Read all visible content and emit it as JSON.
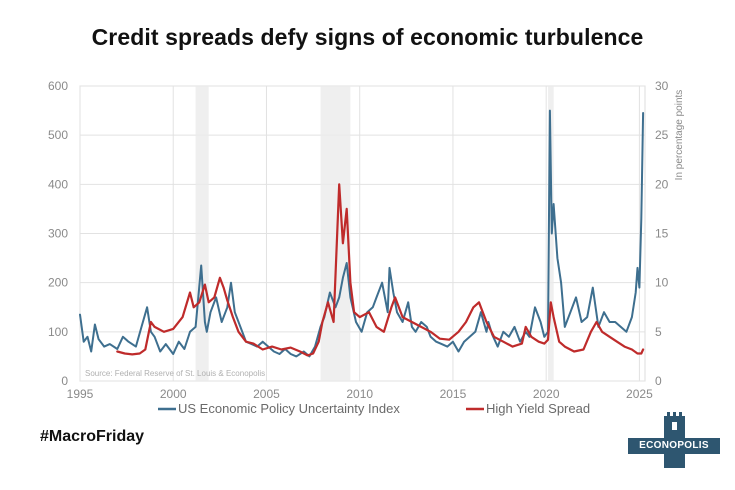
{
  "chart_data": {
    "type": "line",
    "title": "Credit spreads defy signs of economic turbulence",
    "y_right_label": "In percentage points",
    "source_note": "Source: Federal Reserve of St. Louis & Econopolis",
    "x_ticks": [
      "1995",
      "2000",
      "2005",
      "2010",
      "2015",
      "2020",
      "2025"
    ],
    "xlim": [
      1995,
      2025.3
    ],
    "y_left_ticks": [
      "0",
      "100",
      "200",
      "300",
      "400",
      "500",
      "600"
    ],
    "ylim_left": [
      0,
      600
    ],
    "y_right_ticks": [
      "0",
      "5",
      "10",
      "15",
      "20",
      "25",
      "30"
    ],
    "ylim_right": [
      0,
      30
    ],
    "grid": true,
    "legend_position": "bottom",
    "recessions": [
      [
        2001.2,
        2001.9
      ],
      [
        2007.9,
        2009.5
      ],
      [
        2020.1,
        2020.4
      ]
    ],
    "series": [
      {
        "name": "US Economic Policy Uncertainty Index",
        "axis": "left",
        "color": "#3e6f8f",
        "x": [
          1995.0,
          1995.2,
          1995.4,
          1995.6,
          1995.8,
          1996.0,
          1996.3,
          1996.6,
          1997.0,
          1997.3,
          1997.6,
          1998.0,
          1998.3,
          1998.6,
          1998.8,
          1999.0,
          1999.3,
          1999.6,
          2000.0,
          2000.3,
          2000.6,
          2000.9,
          2001.2,
          2001.5,
          2001.7,
          2001.8,
          2002.0,
          2002.3,
          2002.6,
          2002.9,
          2003.1,
          2003.3,
          2003.6,
          2003.9,
          2004.2,
          2004.5,
          2004.8,
          2005.1,
          2005.4,
          2005.7,
          2006.0,
          2006.3,
          2006.6,
          2007.0,
          2007.3,
          2007.6,
          2007.9,
          2008.1,
          2008.4,
          2008.7,
          2008.9,
          2009.1,
          2009.3,
          2009.5,
          2009.8,
          2010.1,
          2010.4,
          2010.7,
          2010.9,
          2011.2,
          2011.5,
          2011.6,
          2011.8,
          2012.0,
          2012.3,
          2012.6,
          2012.8,
          2013.0,
          2013.3,
          2013.6,
          2013.8,
          2014.1,
          2014.4,
          2014.7,
          2015.0,
          2015.3,
          2015.6,
          2015.9,
          2016.2,
          2016.5,
          2016.8,
          2016.9,
          2017.1,
          2017.4,
          2017.7,
          2018.0,
          2018.3,
          2018.6,
          2018.9,
          2019.1,
          2019.4,
          2019.7,
          2019.9,
          2020.1,
          2020.2,
          2020.3,
          2020.4,
          2020.6,
          2020.8,
          2021.0,
          2021.3,
          2021.6,
          2021.9,
          2022.2,
          2022.5,
          2022.8,
          2023.1,
          2023.4,
          2023.7,
          2024.0,
          2024.3,
          2024.6,
          2024.8,
          2024.9,
          2025.0,
          2025.1,
          2025.2
        ],
        "values": [
          135,
          80,
          90,
          60,
          115,
          85,
          70,
          75,
          65,
          90,
          80,
          70,
          110,
          150,
          100,
          90,
          60,
          75,
          55,
          80,
          65,
          100,
          110,
          235,
          120,
          100,
          140,
          170,
          120,
          150,
          200,
          140,
          110,
          80,
          75,
          70,
          80,
          70,
          60,
          55,
          65,
          55,
          50,
          60,
          50,
          70,
          110,
          130,
          180,
          150,
          170,
          210,
          240,
          170,
          120,
          100,
          140,
          150,
          170,
          200,
          140,
          230,
          180,
          140,
          120,
          160,
          110,
          100,
          120,
          110,
          90,
          80,
          75,
          70,
          80,
          60,
          80,
          90,
          100,
          140,
          100,
          120,
          95,
          70,
          100,
          90,
          110,
          80,
          100,
          90,
          150,
          120,
          90,
          100,
          550,
          300,
          360,
          250,
          200,
          110,
          140,
          170,
          120,
          130,
          190,
          110,
          140,
          120,
          120,
          110,
          100,
          130,
          180,
          230,
          190,
          330,
          545
        ]
      },
      {
        "name": "High Yield Spread",
        "axis": "right",
        "color": "#bf2b2b",
        "x": [
          1997.0,
          1997.4,
          1997.8,
          1998.2,
          1998.5,
          1998.8,
          1999.0,
          1999.5,
          2000.0,
          2000.5,
          2000.9,
          2001.1,
          2001.4,
          2001.7,
          2001.9,
          2002.2,
          2002.5,
          2002.7,
          2002.9,
          2003.2,
          2003.5,
          2003.9,
          2004.3,
          2004.8,
          2005.3,
          2005.8,
          2006.3,
          2006.8,
          2007.2,
          2007.5,
          2007.8,
          2008.0,
          2008.3,
          2008.6,
          2008.9,
          2009.1,
          2009.3,
          2009.5,
          2009.7,
          2010.0,
          2010.5,
          2010.9,
          2011.3,
          2011.7,
          2011.9,
          2012.3,
          2012.8,
          2013.3,
          2013.8,
          2014.3,
          2014.8,
          2015.3,
          2015.7,
          2016.1,
          2016.4,
          2016.8,
          2017.2,
          2017.7,
          2018.2,
          2018.7,
          2018.9,
          2019.2,
          2019.6,
          2019.9,
          2020.1,
          2020.25,
          2020.4,
          2020.7,
          2021.0,
          2021.5,
          2022.0,
          2022.4,
          2022.7,
          2023.0,
          2023.4,
          2023.8,
          2024.2,
          2024.6,
          2024.9,
          2025.1,
          2025.2
        ],
        "values": [
          3.0,
          2.8,
          2.7,
          2.8,
          3.2,
          6.0,
          5.5,
          5.0,
          5.3,
          6.5,
          9.0,
          7.5,
          8.0,
          9.8,
          8.0,
          8.5,
          10.5,
          9.5,
          8.2,
          6.5,
          5.0,
          4.0,
          3.8,
          3.2,
          3.5,
          3.2,
          3.4,
          3.0,
          2.6,
          2.8,
          4.0,
          6.0,
          8.0,
          6.0,
          20.0,
          14.0,
          17.5,
          10.0,
          7.0,
          6.5,
          7.0,
          5.5,
          5.0,
          7.5,
          8.5,
          6.5,
          6.0,
          5.5,
          5.0,
          4.3,
          4.2,
          5.0,
          6.0,
          7.5,
          8.0,
          6.0,
          4.5,
          4.0,
          3.5,
          3.8,
          5.5,
          4.5,
          4.0,
          3.8,
          4.2,
          8.0,
          6.5,
          4.0,
          3.5,
          3.0,
          3.2,
          5.0,
          6.0,
          5.0,
          4.5,
          4.0,
          3.5,
          3.2,
          2.8,
          2.8,
          3.2
        ]
      }
    ]
  },
  "footer": {
    "hashtag": "#MacroFriday",
    "logo_text": "ECONOPOLIS"
  }
}
